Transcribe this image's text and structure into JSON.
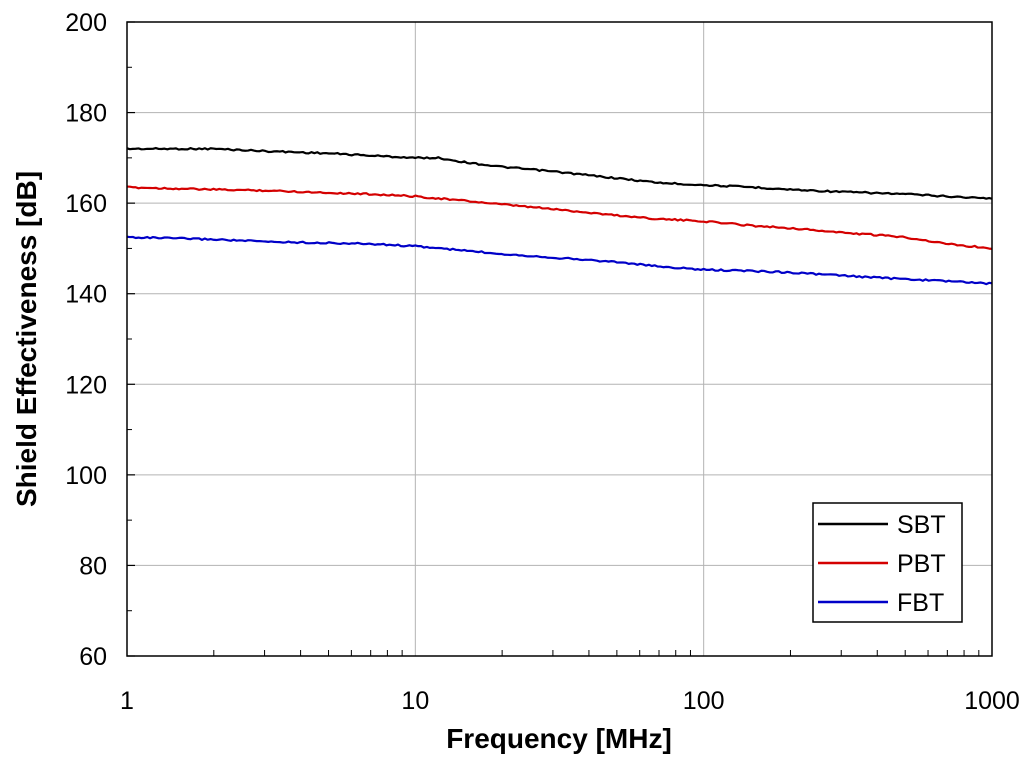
{
  "chart_data": {
    "type": "line",
    "title": "",
    "xlabel": "Frequency [MHz]",
    "ylabel": "Shield Effectiveness [dB]",
    "x_scale": "log",
    "xlim": [
      1,
      1000
    ],
    "ylim": [
      60,
      200
    ],
    "x_ticks": [
      1,
      10,
      100,
      1000
    ],
    "y_ticks": [
      60,
      80,
      100,
      120,
      140,
      160,
      180,
      200
    ],
    "grid": true,
    "legend_position": "bottom-right",
    "series": [
      {
        "name": "SBT",
        "color": "#000000",
        "x": [
          1,
          2,
          3,
          5,
          7,
          10,
          12,
          15,
          20,
          30,
          50,
          70,
          100,
          150,
          200,
          300,
          500,
          700,
          1000
        ],
        "y": [
          172,
          172,
          171.5,
          171,
          170.5,
          170,
          170,
          169,
          168,
          167,
          165.5,
          164.5,
          164,
          163.5,
          163,
          162.5,
          162,
          161.5,
          161
        ]
      },
      {
        "name": "PBT",
        "color": "#d40000",
        "x": [
          1,
          2,
          3,
          5,
          7,
          10,
          15,
          20,
          30,
          50,
          70,
          100,
          150,
          200,
          300,
          500,
          700,
          1000
        ],
        "y": [
          163.5,
          163,
          162.8,
          162.3,
          162,
          161.5,
          160.5,
          159.7,
          158.7,
          157.3,
          156.5,
          156,
          155,
          154.5,
          153.5,
          152.5,
          151,
          150
        ]
      },
      {
        "name": "FBT",
        "color": "#0000c8",
        "x": [
          1,
          2,
          3,
          5,
          7,
          10,
          15,
          20,
          30,
          50,
          70,
          100,
          150,
          200,
          300,
          500,
          700,
          1000
        ],
        "y": [
          152.5,
          152,
          151.5,
          151.2,
          151,
          150.5,
          149.5,
          148.8,
          148,
          147,
          146,
          145.3,
          145,
          144.7,
          144,
          143.2,
          142.8,
          142.2
        ]
      }
    ]
  }
}
